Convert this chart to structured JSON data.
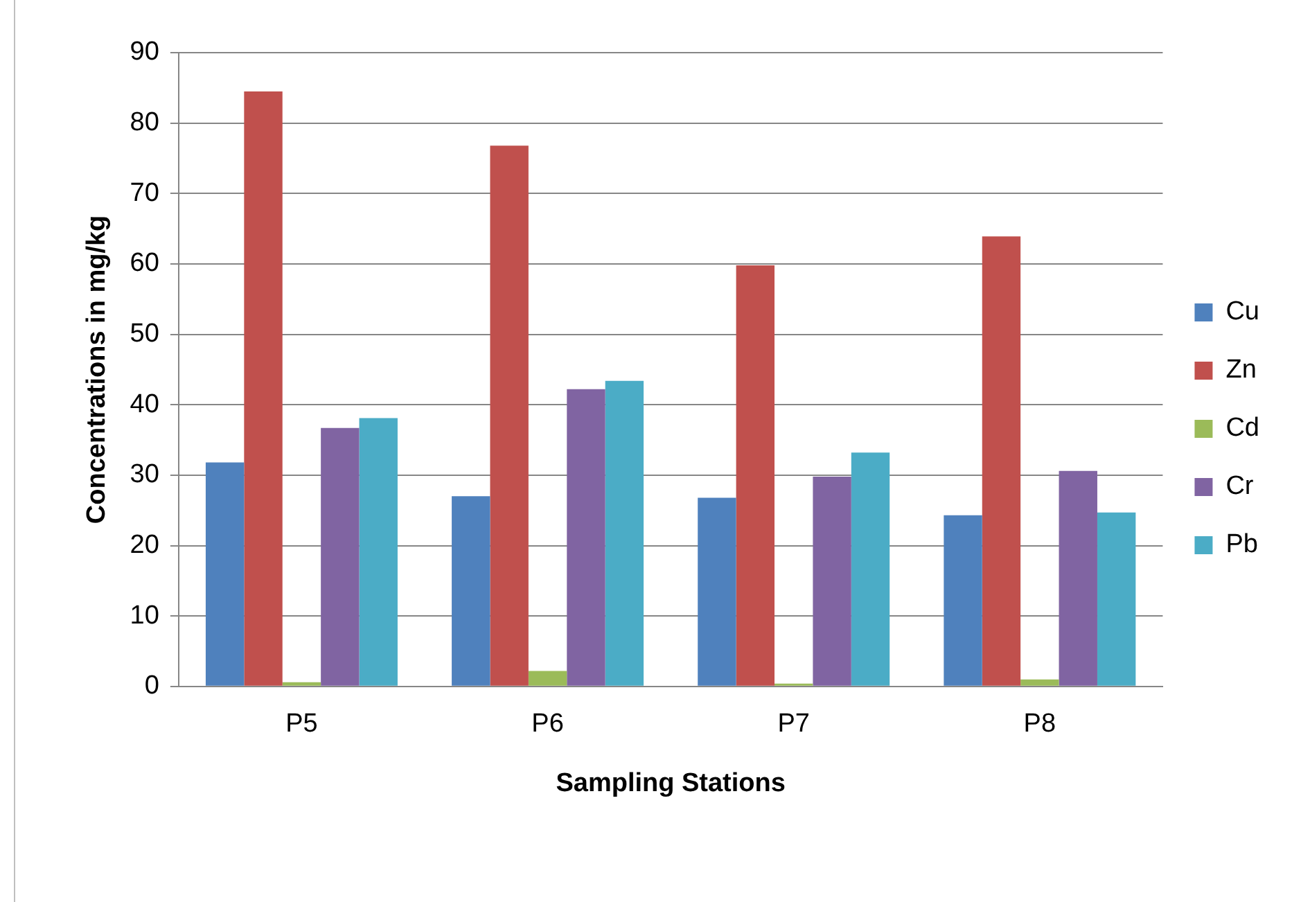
{
  "chart_data": {
    "type": "bar",
    "xlabel": "Sampling Stations",
    "ylabel": "Concentrations in mg/kg",
    "categories": [
      "P5",
      "P6",
      "P7",
      "P8"
    ],
    "series": [
      {
        "name": "Cu",
        "color": "#4f81bd",
        "values": [
          31.8,
          27.0,
          26.8,
          24.3
        ]
      },
      {
        "name": "Zn",
        "color": "#c0504d",
        "values": [
          84.5,
          76.8,
          59.8,
          63.9
        ]
      },
      {
        "name": "Cd",
        "color": "#9bbb59",
        "values": [
          0.6,
          2.2,
          0.4,
          1.0
        ]
      },
      {
        "name": "Cr",
        "color": "#8064a2",
        "values": [
          36.7,
          42.2,
          29.8,
          30.6
        ]
      },
      {
        "name": "Pb",
        "color": "#4bacc6",
        "values": [
          38.1,
          43.4,
          33.2,
          24.7
        ]
      }
    ],
    "ylim": [
      0,
      90
    ],
    "yticks": [
      0,
      10,
      20,
      30,
      40,
      50,
      60,
      70,
      80,
      90
    ],
    "grid": "y",
    "legend": "right"
  }
}
